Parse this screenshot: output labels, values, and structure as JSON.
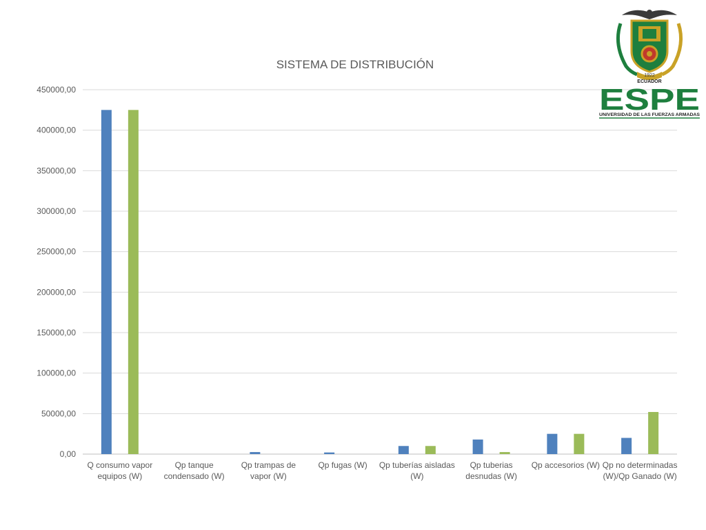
{
  "logo": {
    "year": "1922",
    "country": "ECUADOR",
    "acronym": "ESPE",
    "university": "UNIVERSIDAD DE LAS FUERZAS ARMADAS",
    "colors": {
      "green": "#1e7f3e",
      "gold": "#c9a227",
      "red": "#c0392b"
    }
  },
  "chart_data": {
    "type": "bar",
    "title": "SISTEMA DE DISTRIBUCIÓN",
    "xlabel": "",
    "ylabel": "",
    "ylim": [
      0,
      450000
    ],
    "yticks": [
      "0,00",
      "50000,00",
      "100000,00",
      "150000,00",
      "200000,00",
      "250000,00",
      "300000,00",
      "350000,00",
      "400000,00",
      "450000,00"
    ],
    "grid": true,
    "legend": "none",
    "categories": [
      [
        "Q consumo vapor",
        "equipos (W)"
      ],
      [
        "Qp tanque",
        "condensado (W)"
      ],
      [
        "Qp trampas de",
        "vapor (W)"
      ],
      [
        "Qp fugas (W)"
      ],
      [
        "Qp tuberías aisladas",
        "(W)"
      ],
      [
        "Qp tuberias",
        "desnudas (W)"
      ],
      [
        "Qp accesorios (W)"
      ],
      [
        "Qp no determinadas",
        "(W)/Qp Ganado (W)"
      ]
    ],
    "series": [
      {
        "color": "#4f81bd",
        "values": [
          425000,
          0,
          2500,
          2000,
          10000,
          18000,
          25000,
          20000
        ]
      },
      {
        "color": "#9bbb59",
        "values": [
          425000,
          0,
          0,
          0,
          10000,
          2500,
          25000,
          52000
        ]
      }
    ]
  }
}
